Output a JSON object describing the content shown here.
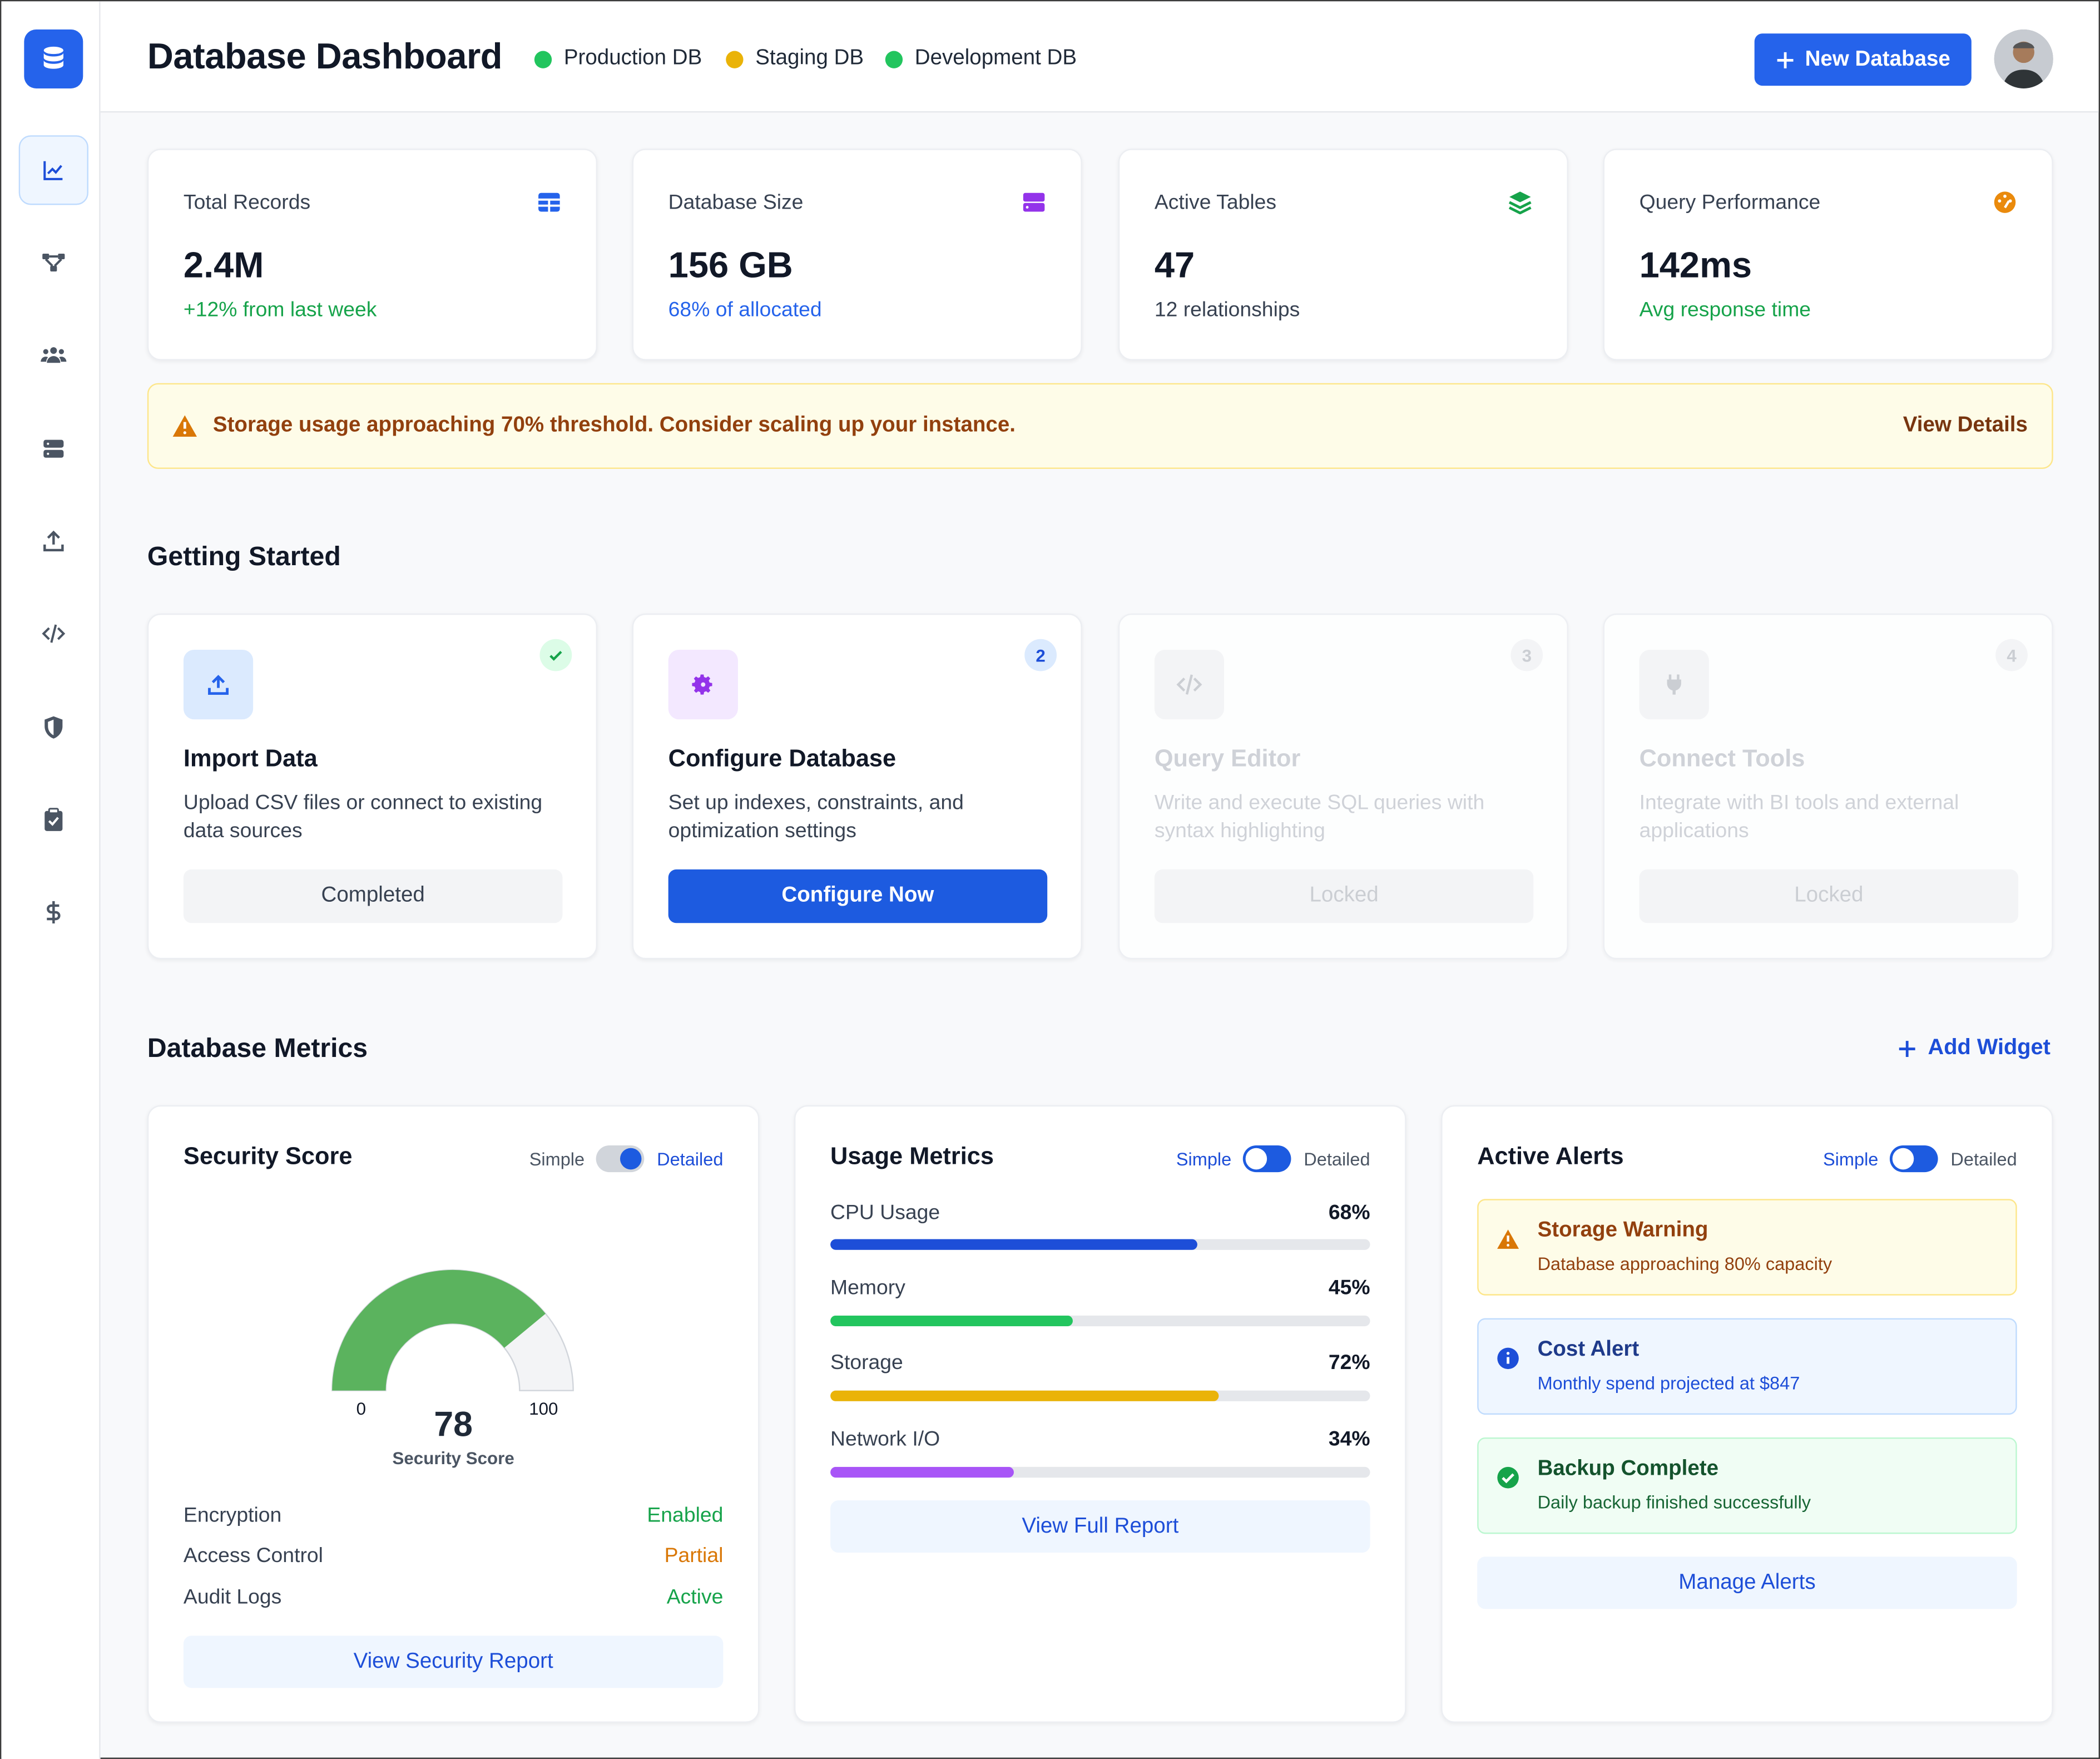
{
  "header": {
    "title": "Database Dashboard",
    "environments": [
      {
        "label": "Production DB",
        "color": "#22c55e"
      },
      {
        "label": "Staging DB",
        "color": "#eab308"
      },
      {
        "label": "Development DB",
        "color": "#22c55e"
      }
    ],
    "new_button": "New Database"
  },
  "sidebar": {
    "items": [
      {
        "name": "analytics-icon",
        "active": true
      },
      {
        "name": "schema-icon",
        "active": false
      },
      {
        "name": "users-icon",
        "active": false
      },
      {
        "name": "server-icon",
        "active": false
      },
      {
        "name": "upload-icon",
        "active": false
      },
      {
        "name": "code-icon",
        "active": false
      },
      {
        "name": "shield-icon",
        "active": false
      },
      {
        "name": "clipboard-check-icon",
        "active": false
      },
      {
        "name": "dollar-icon",
        "active": false
      }
    ]
  },
  "stats": [
    {
      "label": "Total Records",
      "value": "2.4M",
      "sub": "+12% from last week",
      "sub_color": "#16a34a",
      "icon": "table-icon",
      "icon_color": "#2563eb"
    },
    {
      "label": "Database Size",
      "value": "156 GB",
      "sub": "68% of allocated",
      "sub_color": "#2563eb",
      "icon": "storage-icon",
      "icon_color": "#9333ea"
    },
    {
      "label": "Active Tables",
      "value": "47",
      "sub": "12 relationships",
      "sub_color": "#374151",
      "icon": "layers-icon",
      "icon_color": "#16a34a"
    },
    {
      "label": "Query Performance",
      "value": "142ms",
      "sub": "Avg response time",
      "sub_color": "#16a34a",
      "icon": "gauge-icon",
      "icon_color": "#ea8a0c"
    }
  ],
  "banner": {
    "text": "Storage usage approaching 70% threshold. Consider scaling up your instance.",
    "link": "View Details"
  },
  "getting_started": {
    "title": "Getting Started",
    "steps": [
      {
        "title": "Import Data",
        "desc": "Upload CSV files or connect to existing data sources",
        "button": "Completed",
        "badge": "✓",
        "state": "completed"
      },
      {
        "title": "Configure Database",
        "desc": "Set up indexes, constraints, and optimization settings",
        "button": "Configure Now",
        "badge": "2",
        "state": "current"
      },
      {
        "title": "Query Editor",
        "desc": "Write and execute SQL queries with syntax highlighting",
        "button": "Locked",
        "badge": "3",
        "state": "locked"
      },
      {
        "title": "Connect Tools",
        "desc": "Integrate with BI tools and external applications",
        "button": "Locked",
        "badge": "4",
        "state": "locked"
      }
    ]
  },
  "metrics": {
    "title": "Database Metrics",
    "add_widget": "Add Widget",
    "toggle": {
      "simple": "Simple",
      "detailed": "Detailed"
    },
    "security": {
      "title": "Security Score",
      "score": 78,
      "score_display": "78",
      "gauge_min": "0",
      "gauge_max": "100",
      "gauge_label": "Security Score",
      "rows": [
        {
          "label": "Encryption",
          "value": "Enabled",
          "color": "#16a34a"
        },
        {
          "label": "Access Control",
          "value": "Partial",
          "color": "#d97706"
        },
        {
          "label": "Audit Logs",
          "value": "Active",
          "color": "#16a34a"
        }
      ],
      "button": "View Security Report"
    },
    "usage": {
      "title": "Usage Metrics",
      "bars": [
        {
          "label": "CPU Usage",
          "pct": "68%",
          "value": 68,
          "color": "#1d4ed8"
        },
        {
          "label": "Memory",
          "pct": "45%",
          "value": 45,
          "color": "#22c55e"
        },
        {
          "label": "Storage",
          "pct": "72%",
          "value": 72,
          "color": "#eab308"
        },
        {
          "label": "Network I/O",
          "pct": "34%",
          "value": 34,
          "color": "#a855f7"
        }
      ],
      "button": "View Full Report"
    },
    "alerts": {
      "title": "Active Alerts",
      "items": [
        {
          "title": "Storage Warning",
          "desc": "Database approaching 80% capacity",
          "kind": "warning"
        },
        {
          "title": "Cost Alert",
          "desc": "Monthly spend projected at $847",
          "kind": "info"
        },
        {
          "title": "Backup Complete",
          "desc": "Daily backup finished successfully",
          "kind": "success"
        }
      ],
      "button": "Manage Alerts"
    }
  }
}
